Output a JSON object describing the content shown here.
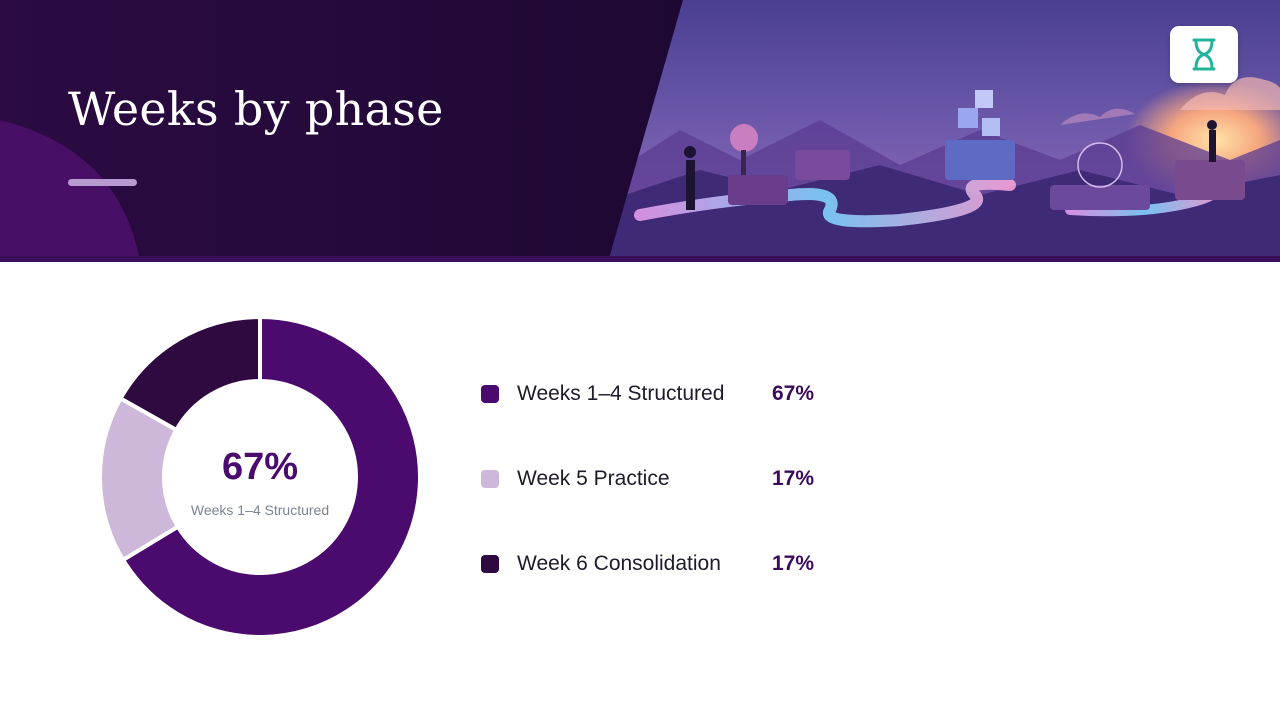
{
  "slide": {
    "title": "Weeks by phase"
  },
  "colors": {
    "header_bg": "#240a3a",
    "accent_purple": "#4a0a6e",
    "light_lilac": "#cdb8d9",
    "dark_plum": "#2e0a40"
  },
  "icons": {
    "logo": "hourglass-icon"
  },
  "center": {
    "value": "67%",
    "label": "Weeks 1–4 Structured"
  },
  "chart_data": {
    "type": "pie",
    "donut": true,
    "categories": [
      "Weeks 1–4 Structured",
      "Week 5 Practice",
      "Week 6 Consolidation"
    ],
    "values": [
      67,
      17,
      17
    ],
    "labels": [
      "67%",
      "17%",
      "17%"
    ],
    "colors": [
      "#4a0a6e",
      "#cdb8d9",
      "#2e0a40"
    ],
    "legend_position": "right"
  }
}
